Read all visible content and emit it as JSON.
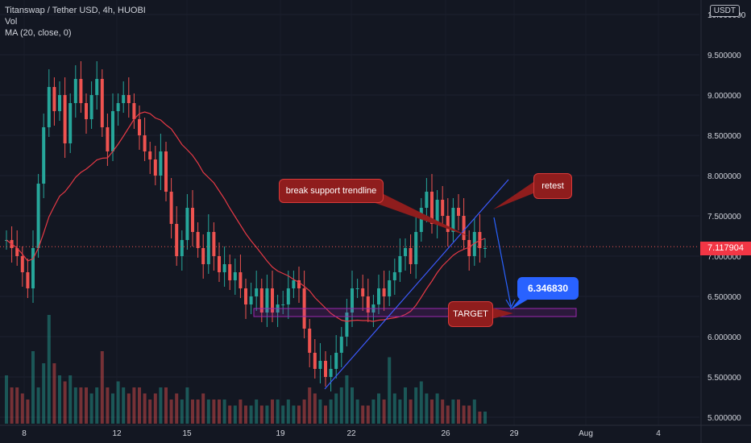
{
  "legend": {
    "symbol_line": "Titanswap / Tether USD, 4h, HUOBI",
    "vol": "Vol",
    "ma": "MA (20, close, 0)"
  },
  "price_axis": {
    "currency": "USDT",
    "last_price": "7.117904",
    "ticks": [
      "10.000000",
      "9.500000",
      "9.000000",
      "8.500000",
      "8.000000",
      "7.500000",
      "7.000000",
      "6.500000",
      "6.000000",
      "5.500000",
      "5.000000"
    ]
  },
  "time_axis": {
    "labels": [
      "8",
      "12",
      "15",
      "19",
      "22",
      "26",
      "29",
      "Aug",
      "4"
    ]
  },
  "annotations": {
    "break_label": "break support trendline",
    "retest_label": "retest",
    "target_label": "TARGET",
    "target_price": "6.346830"
  },
  "colors": {
    "background": "#131722",
    "up": "#26a69a",
    "down": "#ef5350",
    "ma": "#e53945",
    "trendline": "#3d5afe",
    "target_zone": "#9c27b0",
    "callout": "#8f1d1d"
  },
  "chart_data": {
    "type": "candlestick",
    "title": "Titanswap / Tether USD, 4h, HUOBI",
    "ylim": [
      5.0,
      10.0
    ],
    "ma_period": 20,
    "trendline": {
      "from": [
        "Jul 21",
        5.35
      ],
      "to": [
        "Jul 28",
        7.95
      ]
    },
    "target_zone": {
      "from": 6.25,
      "to": 6.35
    },
    "closes": [
      7.2,
      7.1,
      7.0,
      6.8,
      6.6,
      7.1,
      7.9,
      8.6,
      9.1,
      8.8,
      9.0,
      8.4,
      8.9,
      9.2,
      8.9,
      8.7,
      9.0,
      9.2,
      8.6,
      8.3,
      8.8,
      8.9,
      9.0,
      8.9,
      8.7,
      8.5,
      8.3,
      8.2,
      8.0,
      8.3,
      7.8,
      7.4,
      7.0,
      7.2,
      7.6,
      7.3,
      7.1,
      6.9,
      7.3,
      7.0,
      6.8,
      6.9,
      6.7,
      6.8,
      6.6,
      6.4,
      6.5,
      6.6,
      6.3,
      6.6,
      6.3,
      6.4,
      6.4,
      6.6,
      6.7,
      6.6,
      6.1,
      5.8,
      5.6,
      5.7,
      5.5,
      5.6,
      5.8,
      6.0,
      6.3,
      6.6,
      6.6,
      6.5,
      6.3,
      6.4,
      6.6,
      6.5,
      6.7,
      6.8,
      7.0,
      7.1,
      6.9,
      7.3,
      7.6,
      7.8,
      7.4,
      7.7,
      7.5,
      7.3,
      7.6,
      7.5,
      7.2,
      7.0,
      7.3,
      7.1,
      7.1
    ],
    "volumes": [
      0.4,
      0.3,
      0.3,
      0.25,
      0.2,
      0.6,
      0.3,
      0.5,
      0.9,
      0.5,
      0.4,
      0.35,
      0.4,
      0.3,
      0.3,
      0.3,
      0.25,
      0.3,
      0.6,
      0.3,
      0.25,
      0.35,
      0.3,
      0.25,
      0.3,
      0.3,
      0.25,
      0.2,
      0.25,
      0.3,
      0.3,
      0.2,
      0.25,
      0.2,
      0.3,
      0.2,
      0.2,
      0.25,
      0.2,
      0.2,
      0.2,
      0.2,
      0.15,
      0.15,
      0.2,
      0.15,
      0.15,
      0.2,
      0.15,
      0.15,
      0.2,
      0.2,
      0.15,
      0.2,
      0.15,
      0.15,
      0.2,
      0.3,
      0.25,
      0.2,
      0.15,
      0.2,
      0.25,
      0.3,
      0.4,
      0.3,
      0.2,
      0.15,
      0.15,
      0.2,
      0.25,
      0.2,
      0.55,
      0.25,
      0.2,
      0.3,
      0.2,
      0.3,
      0.35,
      0.25,
      0.2,
      0.25,
      0.2,
      0.15,
      0.2,
      0.2,
      0.15,
      0.15,
      0.2,
      0.1,
      0.1
    ]
  }
}
